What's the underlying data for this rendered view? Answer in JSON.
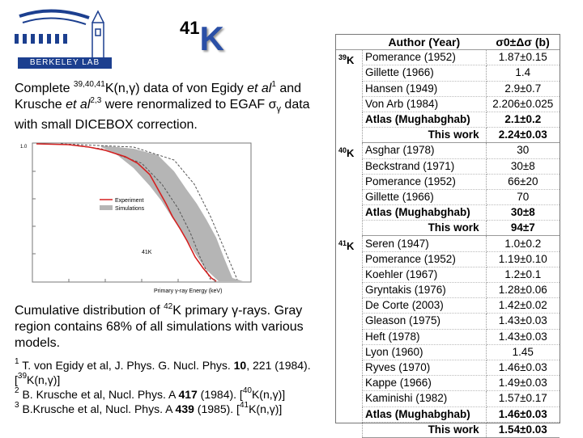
{
  "logo": {
    "text": "BERKELEY LAB",
    "icon": "berkeley-lab-logo"
  },
  "title": {
    "mass": "41",
    "symbol": "K"
  },
  "intro": {
    "p1": "Complete ",
    "sup1": "39,40,41",
    "p2": "K(n,γ) data of von Egidy ",
    "etal1": "et al",
    "sup2": "1",
    "p3": " and Krusche ",
    "etal2": "et al",
    "sup3": "2,3",
    "p4": " were renormalized to EGAF σ",
    "sub": "γ",
    "p5": " data with small DICEBOX correction."
  },
  "plot": {
    "ytick_top": "1.0",
    "legend_experiment": "Experiment",
    "legend_simulations": "Simulations",
    "xlabel": "Primary γ-ray Energy (keV)",
    "label_isotope": "41K",
    "colors": {
      "experiment": "#d42020",
      "band": "#b5b5b5"
    }
  },
  "caption": {
    "p1": "Cumulative distribution of ",
    "sup": "42",
    "p2": "K primary γ-rays. Gray region contains 68% of all simulations with various models."
  },
  "refs": [
    {
      "num": "1",
      "text": " T. von Egidy et al, J. Phys. G. Nucl. Phys. ",
      "vol": "10",
      "rest": ", 221 (1984). [",
      "nsup": "39",
      "tail": "K(n,γ)]"
    },
    {
      "num": "2",
      "text": " B. Krusche et al, Nucl. Phys. A ",
      "vol": "417",
      "rest": " (1984). [",
      "nsup": "40",
      "tail": "K(n,γ)]"
    },
    {
      "num": "3",
      "text": " B.Krusche et al, Nucl. Phys. A ",
      "vol": "439",
      "rest": " (1985). [",
      "nsup": "41",
      "tail": "K(n,γ)]"
    }
  ],
  "table": {
    "header_author": "Author (Year)",
    "header_value": "σ0±Δσ (b)",
    "groups": [
      {
        "mass": "39",
        "symbol": "K",
        "rows": [
          {
            "author": "Pomerance (1952)",
            "value": "1.87±0.15",
            "bold": false
          },
          {
            "author": "Gillette (1966)",
            "value": "1.4",
            "bold": false
          },
          {
            "author": "Hansen (1949)",
            "value": "2.9±0.7",
            "bold": false
          },
          {
            "author": "Von Arb (1984)",
            "value": "2.206±0.025",
            "bold": false
          },
          {
            "author": "Atlas (Mughabghab)",
            "value": "2.1±0.2",
            "bold": true
          },
          {
            "author": "This work",
            "value": "2.24±0.03",
            "bold": true,
            "right": true
          }
        ]
      },
      {
        "mass": "40",
        "symbol": "K",
        "rows": [
          {
            "author": "Asghar (1978)",
            "value": "30",
            "bold": false
          },
          {
            "author": "Beckstrand (1971)",
            "value": "30±8",
            "bold": false
          },
          {
            "author": "Pomerance (1952)",
            "value": "66±20",
            "bold": false
          },
          {
            "author": "Gillette (1966)",
            "value": "70",
            "bold": false
          },
          {
            "author": "Atlas (Mughabghab)",
            "value": "30±8",
            "bold": true
          },
          {
            "author": "This work",
            "value": "94±7",
            "bold": true,
            "right": true
          }
        ]
      },
      {
        "mass": "41",
        "symbol": "K",
        "rows": [
          {
            "author": "Seren (1947)",
            "value": "1.0±0.2",
            "bold": false
          },
          {
            "author": "Pomerance (1952)",
            "value": "1.19±0.10",
            "bold": false
          },
          {
            "author": "Koehler (1967)",
            "value": "1.2±0.1",
            "bold": false
          },
          {
            "author": "Gryntakis (1976)",
            "value": "1.28±0.06",
            "bold": false
          },
          {
            "author": "De Corte (2003)",
            "value": "1.42±0.02",
            "bold": false
          },
          {
            "author": "Gleason (1975)",
            "value": "1.43±0.03",
            "bold": false
          },
          {
            "author": "Heft (1978)",
            "value": "1.43±0.03",
            "bold": false
          },
          {
            "author": "Lyon (1960)",
            "value": "1.45",
            "bold": false
          },
          {
            "author": "Ryves (1970)",
            "value": "1.46±0.03",
            "bold": false
          },
          {
            "author": "Kappe (1966)",
            "value": "1.49±0.03",
            "bold": false
          },
          {
            "author": "Kaminishi (1982)",
            "value": "1.57±0.17",
            "bold": false
          },
          {
            "author": "Atlas (Mughabghab)",
            "value": "1.46±0.03",
            "bold": true
          },
          {
            "author": "This work",
            "value": "1.54±0.03",
            "bold": true,
            "right": true
          }
        ]
      }
    ]
  }
}
